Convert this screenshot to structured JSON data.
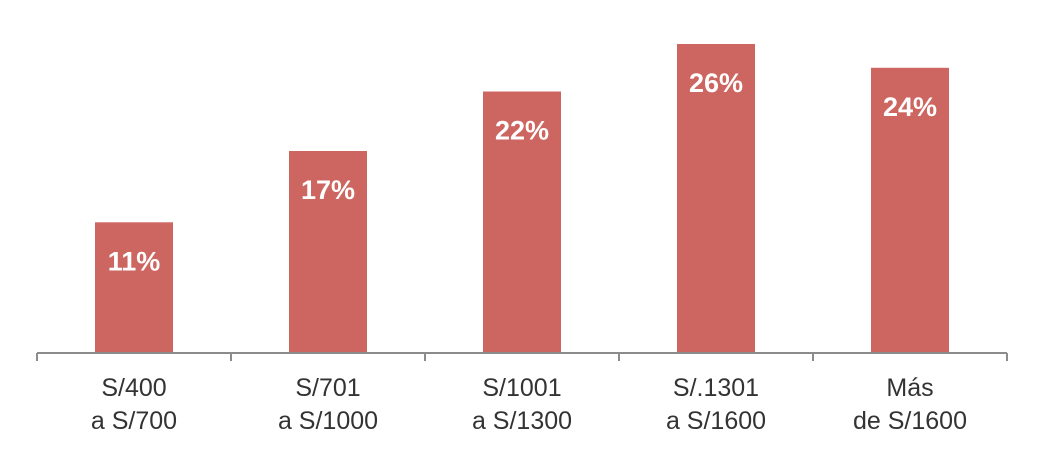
{
  "chart_data": {
    "type": "bar",
    "categories": [
      [
        "S/400",
        "a S/700"
      ],
      [
        "S/701",
        "a S/1000"
      ],
      [
        "S/1001",
        "a S/1300"
      ],
      [
        "S/.1301",
        "a S/1600"
      ],
      [
        "Más",
        "de S/1600"
      ]
    ],
    "values": [
      11,
      17,
      22,
      26,
      24
    ],
    "value_labels": [
      "11%",
      "17%",
      "22%",
      "26%",
      "24%"
    ],
    "title": "",
    "xlabel": "",
    "ylabel": "",
    "ylim": [
      0,
      26
    ],
    "grid": false,
    "legend": "none",
    "bar_color": "#CD6660",
    "axis_color": "#8C8C8C",
    "value_label_color": "#FFFFFF",
    "category_label_color": "#333333"
  }
}
